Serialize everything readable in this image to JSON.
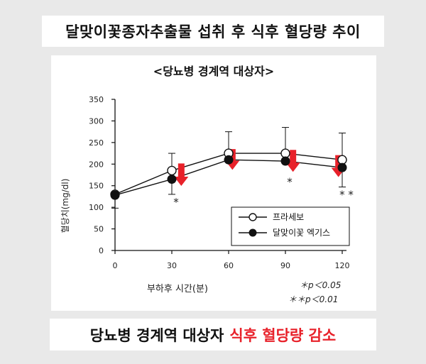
{
  "title": "달맞이꽃종자추출물 섭취 후 식후 혈당량 추이",
  "footer": {
    "text": "당뇨병 경계역 대상자",
    "highlight": "식후 혈당량 감소"
  },
  "chart_data": {
    "type": "line",
    "subtitle": "<당뇨병 경계역 대상자>",
    "xlabel": "부하후 시간(분)",
    "ylabel": "혈당치(mg/dl)",
    "x": [
      0,
      30,
      60,
      90,
      120
    ],
    "xticks": [
      "0",
      "30",
      "60",
      "90",
      "120"
    ],
    "ylim": [
      0,
      350
    ],
    "yticks": [
      0,
      50,
      100,
      150,
      200,
      250,
      300,
      350
    ],
    "series": [
      {
        "name": "프라세보",
        "marker": "open-circle",
        "values": [
          130,
          185,
          225,
          225,
          210
        ],
        "error": [
          0,
          40,
          50,
          60,
          62
        ]
      },
      {
        "name": "달맞이꽃 엑기스",
        "marker": "filled-circle",
        "values": [
          128,
          165,
          210,
          207,
          192
        ],
        "error": [
          30,
          35,
          0,
          0,
          45
        ]
      }
    ],
    "significance": [
      {
        "x": 30,
        "label": "*"
      },
      {
        "x": 90,
        "label": "*"
      },
      {
        "x": 120,
        "label": "* *"
      }
    ],
    "arrows_x": [
      35,
      62,
      94,
      118
    ],
    "arrow_color": "#e8212a",
    "legend_position": "bottom-right",
    "notes": [
      "＊p＜0.05",
      "＊＊p＜0.01"
    ]
  }
}
